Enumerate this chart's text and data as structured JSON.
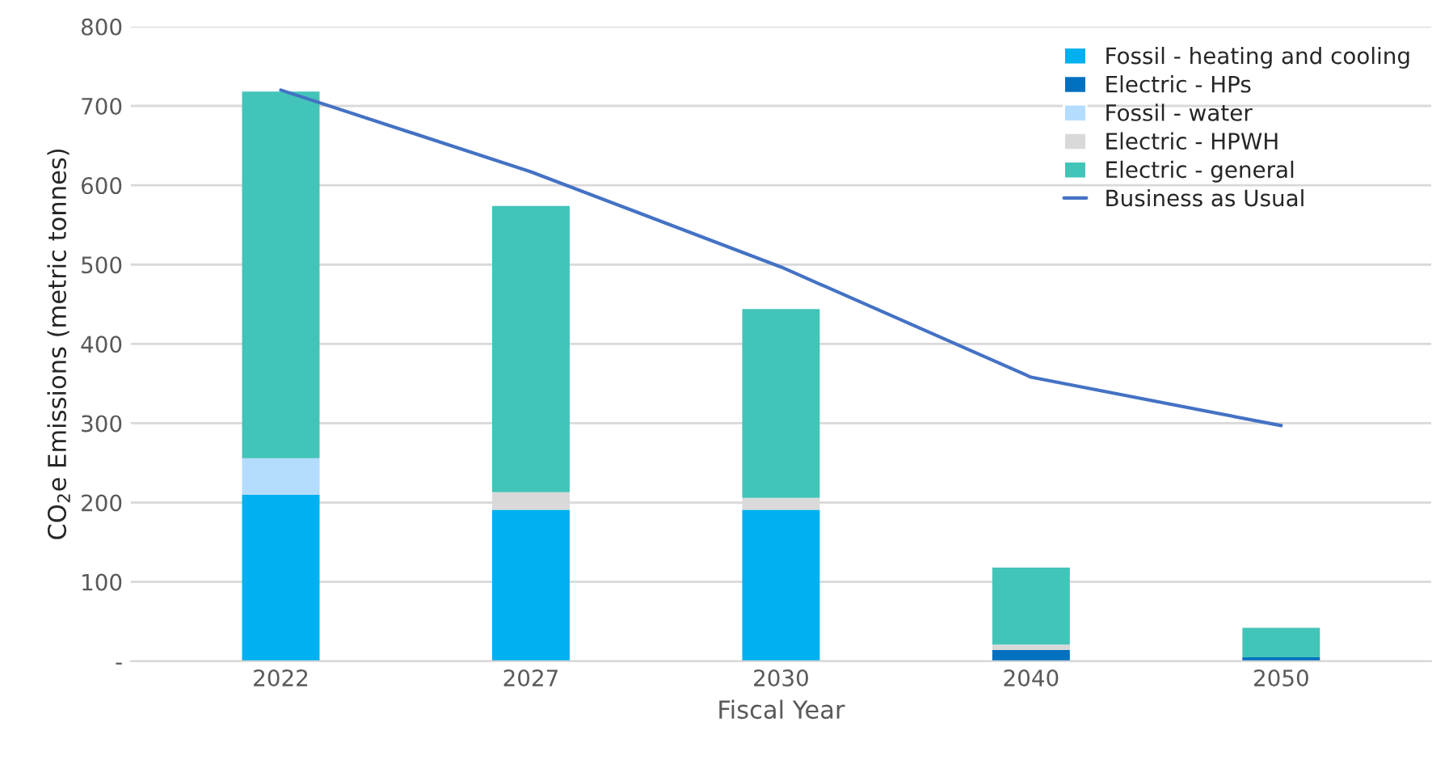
{
  "chart_data": {
    "type": "bar",
    "stacked": true,
    "xlabel": "Fiscal Year",
    "ylabel": "CO$_{2}$e Emissions (metric tonnes)",
    "categories": [
      "2022",
      "2027",
      "2030",
      "2040",
      "2050"
    ],
    "series": [
      {
        "name": "Fossil - heating and cooling",
        "color": "#00b0f0",
        "values": [
          210,
          191,
          191,
          0,
          0
        ]
      },
      {
        "name": "Electric - HPs",
        "color": "#0070c0",
        "values": [
          0,
          0,
          0,
          14,
          5
        ]
      },
      {
        "name": "Fossil - water",
        "color": "#b4dcff",
        "values": [
          46,
          0,
          0,
          0,
          0
        ]
      },
      {
        "name": "Electric - HPWH",
        "color": "#d9d9d9",
        "values": [
          0,
          22,
          15,
          7,
          null
        ]
      },
      {
        "name": "Electric - general",
        "color": "#43c4b8",
        "values": [
          462,
          361,
          238,
          97,
          37
        ]
      },
      {
        "name": "Business as Usual",
        "type": "line",
        "color": "#4472c4",
        "values": [
          720,
          617,
          497,
          358,
          297
        ]
      }
    ],
    "ylim": [
      0,
      800
    ],
    "yticks": [
      {
        "value": 0,
        "label": "-"
      },
      100,
      200,
      300,
      400,
      500,
      600,
      700,
      800
    ],
    "grid": "y",
    "legend": "top right",
    "marker": "none"
  }
}
